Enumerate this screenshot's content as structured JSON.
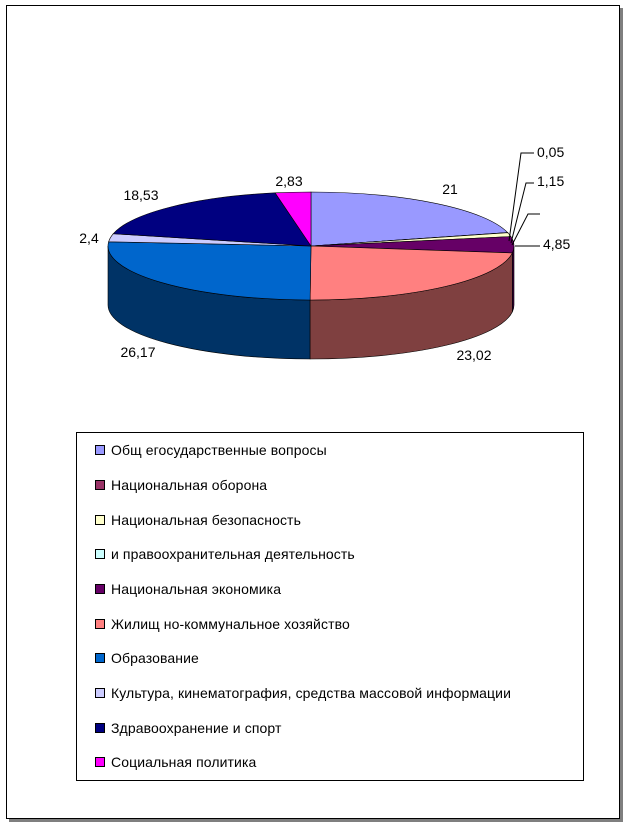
{
  "chart_data": {
    "type": "pie",
    "title": "",
    "legend_position": "bottom",
    "slices": [
      {
        "name": "Общ егосударственные вопросы",
        "value": 21,
        "label": "21",
        "color": "#9999ff",
        "side": "#5f5fa0"
      },
      {
        "name": "Национальная оборона",
        "value": 0.05,
        "label": "0,05",
        "color": "#993366",
        "side": "#5e2040"
      },
      {
        "name": "Национальная безопасность",
        "value": 1.15,
        "label": "1,15",
        "color": "#ffffcc",
        "side": "#a0a080"
      },
      {
        "name": "и правоохранительная деятельность",
        "value": 0,
        "label": "",
        "color": "#ccffff",
        "side": "#80a0a0"
      },
      {
        "name": "Национальная экономика",
        "value": 4.85,
        "label": "4,85",
        "color": "#660066",
        "side": "#3d003d"
      },
      {
        "name": "Жилищ но-коммунальное хозяйство",
        "value": 23.02,
        "label": "23,02",
        "color": "#ff8080",
        "side": "#7f4040"
      },
      {
        "name": "Образование",
        "value": 26.17,
        "label": "26,17",
        "color": "#0066cc",
        "side": "#003366"
      },
      {
        "name": "Культура, кинематография, средства массовой информации",
        "value": 2.4,
        "label": "2,4",
        "color": "#ccccff",
        "side": "#8080a0"
      },
      {
        "name": "Здравоохранение и спорт",
        "value": 18.53,
        "label": "18,53",
        "color": "#000080",
        "side": "#00004d"
      },
      {
        "name": "Социальная политика",
        "value": 2.83,
        "label": "2,83",
        "color": "#ff00ff",
        "side": "#990099"
      }
    ]
  }
}
